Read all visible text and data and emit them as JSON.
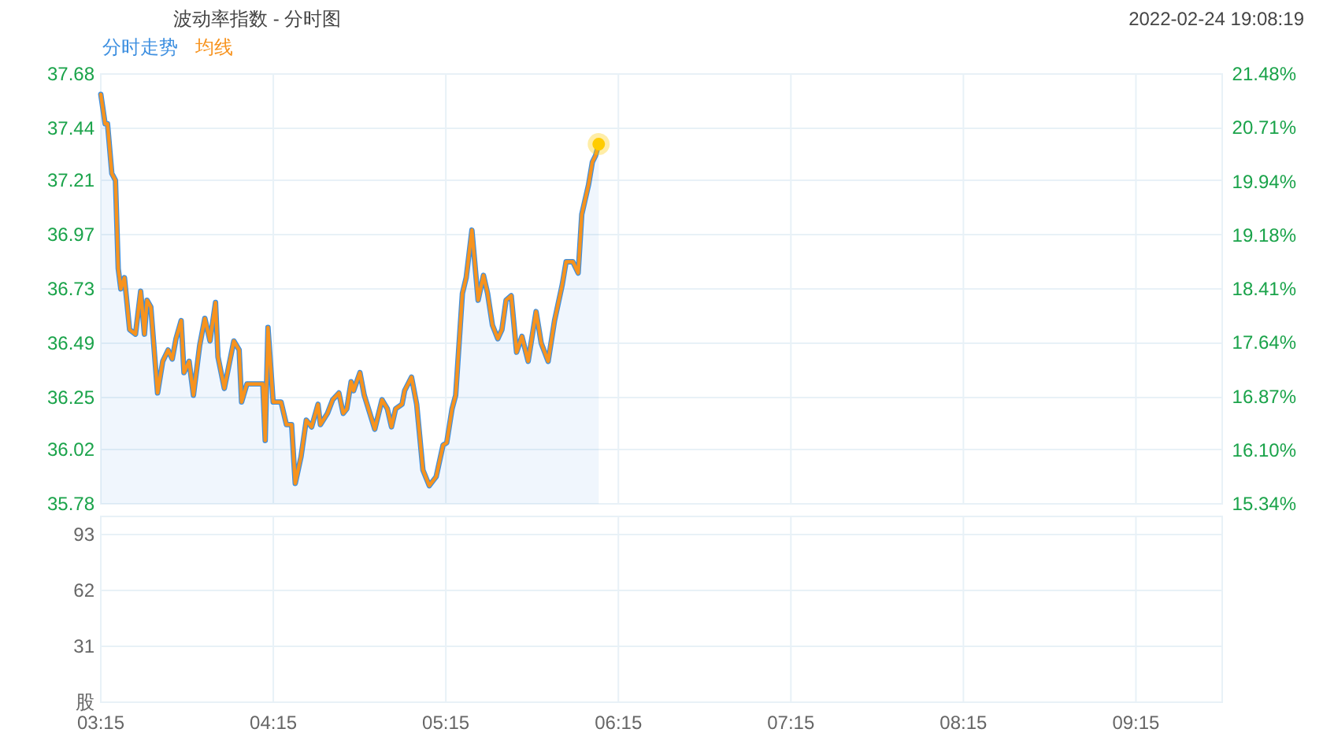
{
  "chart_data": [
    {
      "type": "line",
      "title": "波动率指数 - 分时图",
      "annotations": [
        "2022-02-24 19:08:19"
      ],
      "legend": "top left",
      "grid": true,
      "tick_labels": "y",
      "xlim": [
        3.25,
        9.75
      ],
      "xticks": [
        {
          "value": 3.25,
          "label": null
        },
        {
          "value": 4.25,
          "label": null
        },
        {
          "value": 5.25,
          "label": null
        },
        {
          "value": 6.25,
          "label": null
        },
        {
          "value": 7.25,
          "label": null
        },
        {
          "value": 8.25,
          "label": null
        },
        {
          "value": 9.25,
          "label": null
        }
      ],
      "ylim": [
        35.78,
        37.68
      ],
      "yticks": [
        35.78,
        36.02,
        36.25,
        36.49,
        36.73,
        36.97,
        37.21,
        37.44,
        37.68
      ],
      "y2lim": [
        15.34,
        21.48
      ],
      "y2ticks": [
        {
          "value": 15.34,
          "label": "15.34%"
        },
        {
          "value": 16.1,
          "label": "16.10%"
        },
        {
          "value": 16.87,
          "label": "16.87%"
        },
        {
          "value": 17.64,
          "label": "17.64%"
        },
        {
          "value": 18.41,
          "label": "18.41%"
        },
        {
          "value": 19.18,
          "label": "19.18%"
        },
        {
          "value": 19.94,
          "label": "19.94%"
        },
        {
          "value": 20.71,
          "label": "20.71%"
        },
        {
          "value": 21.48,
          "label": "21.48%"
        }
      ],
      "x": [
        3.25,
        3.275,
        3.289,
        3.314,
        3.335,
        3.351,
        3.366,
        3.387,
        3.417,
        3.451,
        3.481,
        3.503,
        3.518,
        3.54,
        3.579,
        3.609,
        3.64,
        3.664,
        3.686,
        3.716,
        3.732,
        3.762,
        3.787,
        3.823,
        3.853,
        3.883,
        3.915,
        3.929,
        3.966,
        4.021,
        4.052,
        4.066,
        4.097,
        4.189,
        4.203,
        4.219,
        4.249,
        4.295,
        4.326,
        4.356,
        4.377,
        4.411,
        4.441,
        4.472,
        4.509,
        4.523,
        4.564,
        4.594,
        4.63,
        4.655,
        4.676,
        4.701,
        4.715,
        4.752,
        4.777,
        4.838,
        4.88,
        4.911,
        4.935,
        4.959,
        4.996,
        5.011,
        5.051,
        5.081,
        5.117,
        5.154,
        5.194,
        5.234,
        5.255,
        5.286,
        5.307,
        5.346,
        5.368,
        5.401,
        5.437,
        5.468,
        5.492,
        5.52,
        5.551,
        5.575,
        5.599,
        5.629,
        5.66,
        5.691,
        5.727,
        5.773,
        5.803,
        5.843,
        5.88,
        5.925,
        5.947,
        5.986,
        6.017,
        6.038,
        6.077,
        6.099,
        6.118,
        6.136
      ],
      "series": [
        {
          "name": "分时走势",
          "type": "area",
          "color": "#3d8fe0",
          "values": [
            37.59,
            37.46,
            37.46,
            37.24,
            37.21,
            36.82,
            36.73,
            36.78,
            36.55,
            36.53,
            36.72,
            36.53,
            36.68,
            36.65,
            36.27,
            36.41,
            36.46,
            36.42,
            36.51,
            36.59,
            36.36,
            36.41,
            36.26,
            36.48,
            36.6,
            36.5,
            36.67,
            36.43,
            36.29,
            36.5,
            36.46,
            36.23,
            36.31,
            36.31,
            36.06,
            36.56,
            36.23,
            36.23,
            36.13,
            36.13,
            35.87,
            35.99,
            36.15,
            36.12,
            36.22,
            36.13,
            36.18,
            36.24,
            36.27,
            36.18,
            36.2,
            36.32,
            36.28,
            36.36,
            36.26,
            36.11,
            36.24,
            36.2,
            36.12,
            36.2,
            36.22,
            36.28,
            36.34,
            36.22,
            35.93,
            35.86,
            35.9,
            36.04,
            36.05,
            36.2,
            36.26,
            36.71,
            36.78,
            36.99,
            36.68,
            36.79,
            36.71,
            36.57,
            36.51,
            36.55,
            36.68,
            36.7,
            36.45,
            36.52,
            36.41,
            36.63,
            36.49,
            36.41,
            36.59,
            36.75,
            36.85,
            36.85,
            36.8,
            37.06,
            37.19,
            37.29,
            37.32,
            37.37
          ]
        },
        {
          "name": "均线",
          "color": "#f7931e",
          "values": [
            37.59,
            37.46,
            37.46,
            37.24,
            37.21,
            36.82,
            36.73,
            36.78,
            36.55,
            36.53,
            36.72,
            36.53,
            36.68,
            36.65,
            36.27,
            36.41,
            36.46,
            36.42,
            36.51,
            36.59,
            36.36,
            36.41,
            36.26,
            36.48,
            36.6,
            36.5,
            36.67,
            36.43,
            36.29,
            36.5,
            36.46,
            36.23,
            36.31,
            36.31,
            36.06,
            36.56,
            36.23,
            36.23,
            36.13,
            36.13,
            35.87,
            35.99,
            36.15,
            36.12,
            36.22,
            36.13,
            36.18,
            36.24,
            36.27,
            36.18,
            36.2,
            36.32,
            36.28,
            36.36,
            36.26,
            36.11,
            36.24,
            36.2,
            36.12,
            36.2,
            36.22,
            36.28,
            36.34,
            36.22,
            35.93,
            35.86,
            35.9,
            36.04,
            36.05,
            36.2,
            36.26,
            36.71,
            36.78,
            36.99,
            36.68,
            36.79,
            36.71,
            36.57,
            36.51,
            36.55,
            36.68,
            36.7,
            36.45,
            36.52,
            36.41,
            36.63,
            36.49,
            36.41,
            36.59,
            36.75,
            36.85,
            36.85,
            36.8,
            37.06,
            37.19,
            37.29,
            37.32,
            37.37
          ]
        },
        {
          "type": "scatter",
          "color": "#ffcc00",
          "x": [
            6.136
          ],
          "values": [
            37.37
          ]
        }
      ]
    },
    {
      "type": "bar",
      "grid": true,
      "xlim": [
        3.25,
        9.75
      ],
      "xticks": [
        {
          "value": 3.25,
          "label": "03:15"
        },
        {
          "value": 4.25,
          "label": "04:15"
        },
        {
          "value": 5.25,
          "label": "05:15"
        },
        {
          "value": 6.25,
          "label": "06:15"
        },
        {
          "value": 7.25,
          "label": "07:15"
        },
        {
          "value": 8.25,
          "label": "08:15"
        },
        {
          "value": 9.25,
          "label": "09:15"
        }
      ],
      "ylim": [
        0,
        103
      ],
      "yticks": [
        {
          "value": 0,
          "label": "股"
        },
        31,
        62,
        93
      ]
    }
  ]
}
